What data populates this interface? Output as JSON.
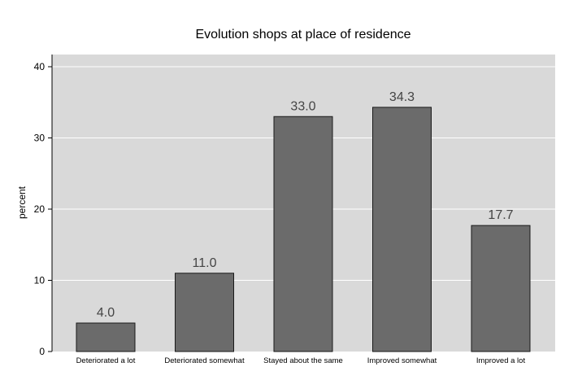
{
  "chart_data": {
    "type": "bar",
    "title": "Evolution shops at place of residence",
    "xlabel": "",
    "ylabel": "percent",
    "categories": [
      "Deteriorated a lot",
      "Deteriorated somewhat",
      "Stayed about the same",
      "Improved somewhat",
      "Improved a lot"
    ],
    "values": [
      4.0,
      11.0,
      33.0,
      34.3,
      17.7
    ],
    "data_labels": [
      "4.0",
      "11.0",
      "33.0",
      "34.3",
      "17.7"
    ],
    "yticks": [
      0,
      10,
      20,
      30,
      40
    ],
    "ylim": [
      0,
      40
    ],
    "grid": true,
    "bar_color": "#6b6b6b",
    "plot_background": "#d9d9d9"
  }
}
